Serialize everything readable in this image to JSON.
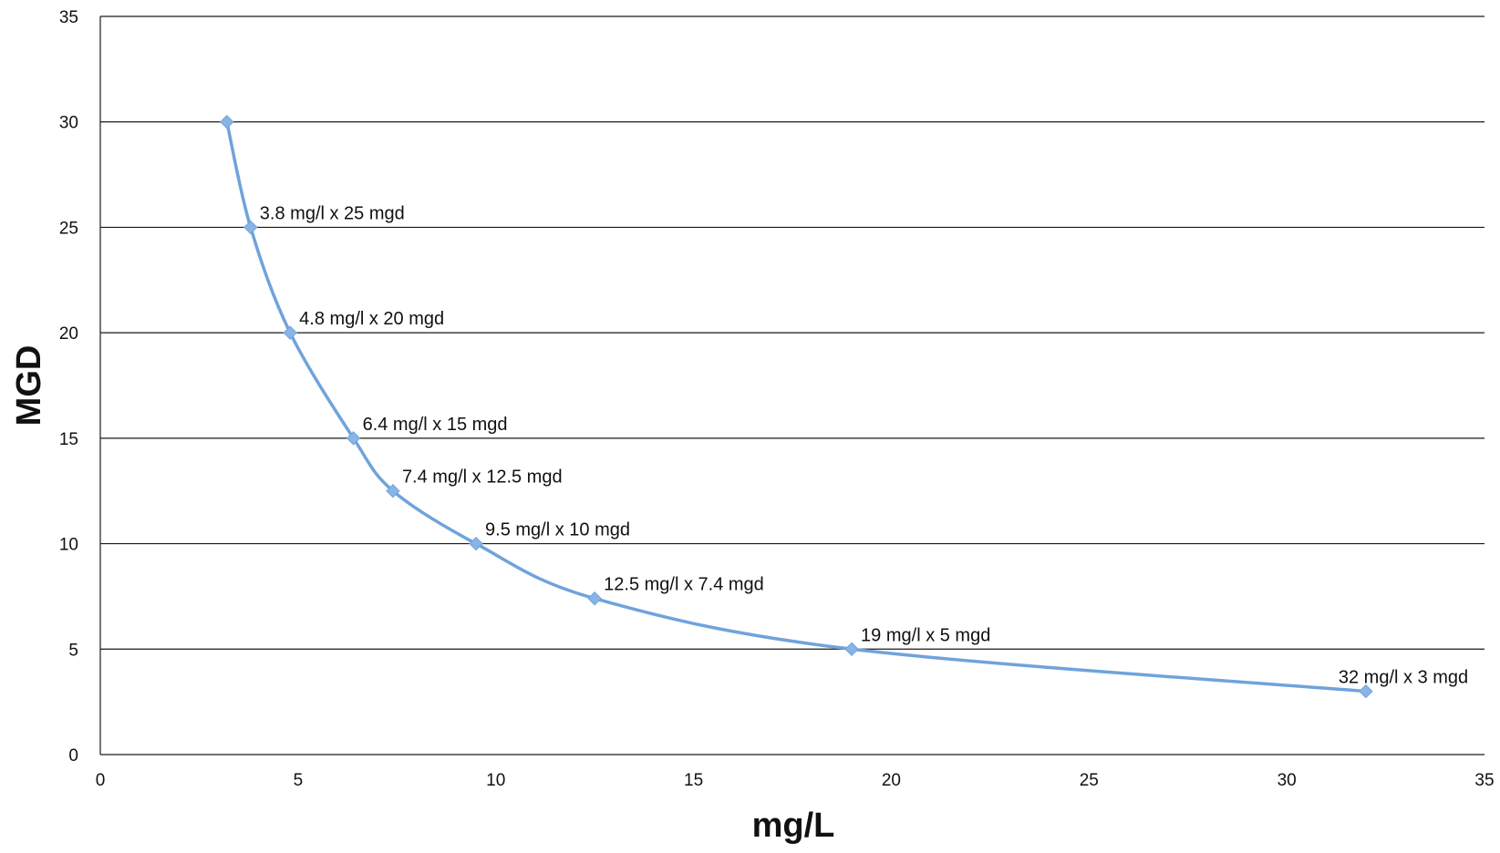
{
  "chart_data": {
    "type": "line",
    "title": "",
    "xlabel": "mg/L",
    "ylabel": "MGD",
    "xlim": [
      0,
      35
    ],
    "ylim": [
      0,
      35
    ],
    "xticks": [
      "0",
      "5",
      "10",
      "15",
      "20",
      "25",
      "30",
      "35"
    ],
    "yticks": [
      "0",
      "5",
      "10",
      "15",
      "20",
      "25",
      "30",
      "35"
    ],
    "grid": "horizontal",
    "legend": "none",
    "line_color": "#6fa3dc",
    "marker_color": "#8ab4e6",
    "smooth": true,
    "series": [
      {
        "x": [
          3.2,
          3.8,
          4.8,
          6.4,
          7.4,
          9.5,
          12.5,
          19,
          32
        ],
        "y": [
          30,
          25,
          20,
          15,
          12.5,
          10,
          7.4,
          5,
          3
        ],
        "labels": [
          "",
          "3.8 mg/l x 25 mgd",
          "4.8 mg/l x 20 mgd",
          "6.4 mg/l x 15 mgd",
          "7.4 mg/l  x 12.5 mgd",
          "9.5 mg/l x 10 mgd",
          "12.5 mg/l x  7.4 mgd",
          "19 mg/l x 5 mgd",
          "32 mg/l x 3 mgd"
        ]
      }
    ]
  }
}
